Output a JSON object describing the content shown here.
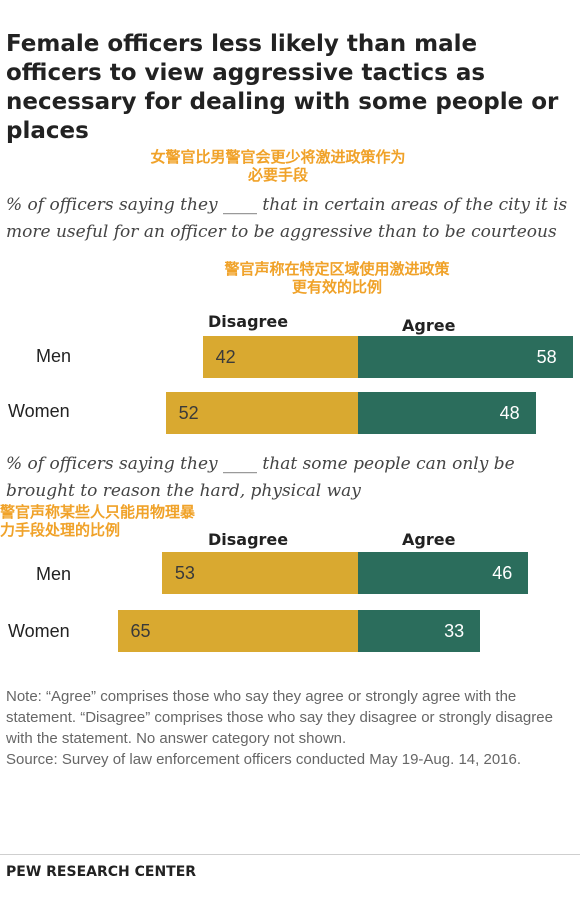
{
  "title": "Female officers less likely than male officers to view aggressive tactics as necessary for dealing with some people or places",
  "overlay_notes": {
    "title_cn": "女警官比男警官会更少将激进政策作为必要手段",
    "chart1_cn": "警官声称在特定区域使用激进政策更有效的比例",
    "chart2_cn": "警官声称某些人只能用物理暴力手段处理的比例"
  },
  "chart_data": [
    {
      "type": "bar",
      "subtitle": "% of officers saying they ____ that in certain areas of the city it is more useful for an officer to be aggressive than to be courteous",
      "categories": [
        "Men",
        "Women"
      ],
      "series": [
        {
          "name": "Disagree",
          "values": [
            42,
            52
          ],
          "color": "#d9a930"
        },
        {
          "name": "Agree",
          "values": [
            58,
            48
          ],
          "color": "#2b6d5c"
        }
      ],
      "labels": {
        "disagree": "Disagree",
        "agree": "Agree"
      }
    },
    {
      "type": "bar",
      "subtitle": "% of officers saying they ____ that some people can only be brought to reason the hard, physical way",
      "categories": [
        "Men",
        "Women"
      ],
      "series": [
        {
          "name": "Disagree",
          "values": [
            53,
            65
          ],
          "color": "#d9a930"
        },
        {
          "name": "Agree",
          "values": [
            46,
            33
          ],
          "color": "#2b6d5c"
        }
      ],
      "labels": {
        "disagree": "Disagree",
        "agree": "Agree"
      }
    }
  ],
  "note": "Note: “Agree” comprises those who say they agree or strongly agree with the statement. “Disagree” comprises those who say they disagree or strongly disagree with the statement. No answer category not shown.",
  "source": "Source: Survey of law enforcement officers conducted May 19-Aug. 14, 2016.",
  "brand": "PEW RESEARCH CENTER"
}
